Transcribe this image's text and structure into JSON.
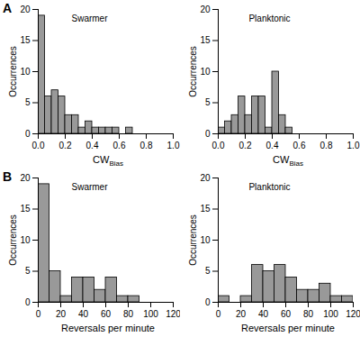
{
  "chart_data": [
    {
      "type": "histogram",
      "title": "Swarmer",
      "annotations": [
        "A"
      ],
      "x_label": "CWBias",
      "y_label": "Occurrences",
      "bins": [
        0.0,
        0.05,
        0.1,
        0.15,
        0.2,
        0.25,
        0.3,
        0.35,
        0.4,
        0.45,
        0.5,
        0.55,
        0.6,
        0.65,
        0.7,
        0.75,
        0.8,
        0.85,
        0.9,
        0.95,
        1.0
      ],
      "values": [
        19,
        6,
        7,
        6,
        3,
        3,
        1,
        2,
        1,
        1,
        1,
        1,
        0,
        1,
        0,
        0,
        0,
        0,
        0,
        0
      ],
      "color": "#999999",
      "xlim": [
        0,
        1
      ],
      "ylim": [
        0,
        20
      ],
      "xticks": [
        {
          "value": 0,
          "label": "0.0"
        },
        {
          "value": 0.2,
          "label": "0.2"
        },
        {
          "value": 0.4,
          "label": "0.4"
        },
        {
          "value": 0.6,
          "label": "0.6"
        },
        {
          "value": 0.8,
          "label": "0.8"
        },
        {
          "value": 1,
          "label": "1.0"
        }
      ],
      "yticks": [
        0,
        5,
        10,
        15,
        20
      ],
      "grid": false
    },
    {
      "type": "histogram",
      "title": "Planktonic",
      "x_label": "CWBias",
      "y_label": "Occurrences",
      "bins": [
        0.0,
        0.05,
        0.1,
        0.15,
        0.2,
        0.25,
        0.3,
        0.35,
        0.4,
        0.45,
        0.5,
        0.55,
        0.6,
        0.65,
        0.7,
        0.75,
        0.8,
        0.85,
        0.9,
        0.95,
        1.0
      ],
      "values": [
        1,
        2,
        3,
        6,
        3,
        6,
        6,
        1,
        10,
        3,
        1,
        0,
        0,
        0,
        0,
        0,
        0,
        0,
        0,
        0
      ],
      "color": "#999999",
      "xlim": [
        0,
        1
      ],
      "ylim": [
        0,
        20
      ],
      "xticks": [
        {
          "value": 0,
          "label": "0.0"
        },
        {
          "value": 0.2,
          "label": "0.2"
        },
        {
          "value": 0.4,
          "label": "0.4"
        },
        {
          "value": 0.6,
          "label": "0.6"
        },
        {
          "value": 0.8,
          "label": "0.8"
        },
        {
          "value": 1,
          "label": "1.0"
        }
      ],
      "yticks": [
        0,
        5,
        10,
        15,
        20
      ],
      "grid": false
    },
    {
      "type": "histogram",
      "title": "Swarmer",
      "annotations": [
        "B"
      ],
      "x_label": "Reversals per minute",
      "y_label": "Occurrences",
      "bins": [
        0,
        10,
        20,
        30,
        40,
        50,
        60,
        70,
        80,
        90,
        100,
        110,
        120
      ],
      "values": [
        19,
        5,
        1,
        4,
        4,
        2,
        4,
        1,
        1,
        0,
        0,
        0
      ],
      "color": "#999999",
      "xlim": [
        0,
        120
      ],
      "ylim": [
        0,
        20
      ],
      "xticks": [
        0,
        20,
        40,
        60,
        80,
        100,
        120
      ],
      "yticks": [
        0,
        5,
        10,
        15,
        20
      ],
      "grid": false
    },
    {
      "type": "histogram",
      "title": "Planktonic",
      "x_label": "Reversals per minute",
      "y_label": "Occurrences",
      "bins": [
        0,
        10,
        20,
        30,
        40,
        50,
        60,
        70,
        80,
        90,
        100,
        110,
        120
      ],
      "values": [
        1,
        0,
        1,
        6,
        5,
        6,
        4,
        2,
        2,
        3,
        1,
        1
      ],
      "color": "#999999",
      "xlim": [
        0,
        120
      ],
      "ylim": [
        0,
        20
      ],
      "xticks": [
        0,
        20,
        40,
        60,
        80,
        100,
        120
      ],
      "yticks": [
        0,
        5,
        10,
        15,
        20
      ],
      "grid": false
    }
  ]
}
